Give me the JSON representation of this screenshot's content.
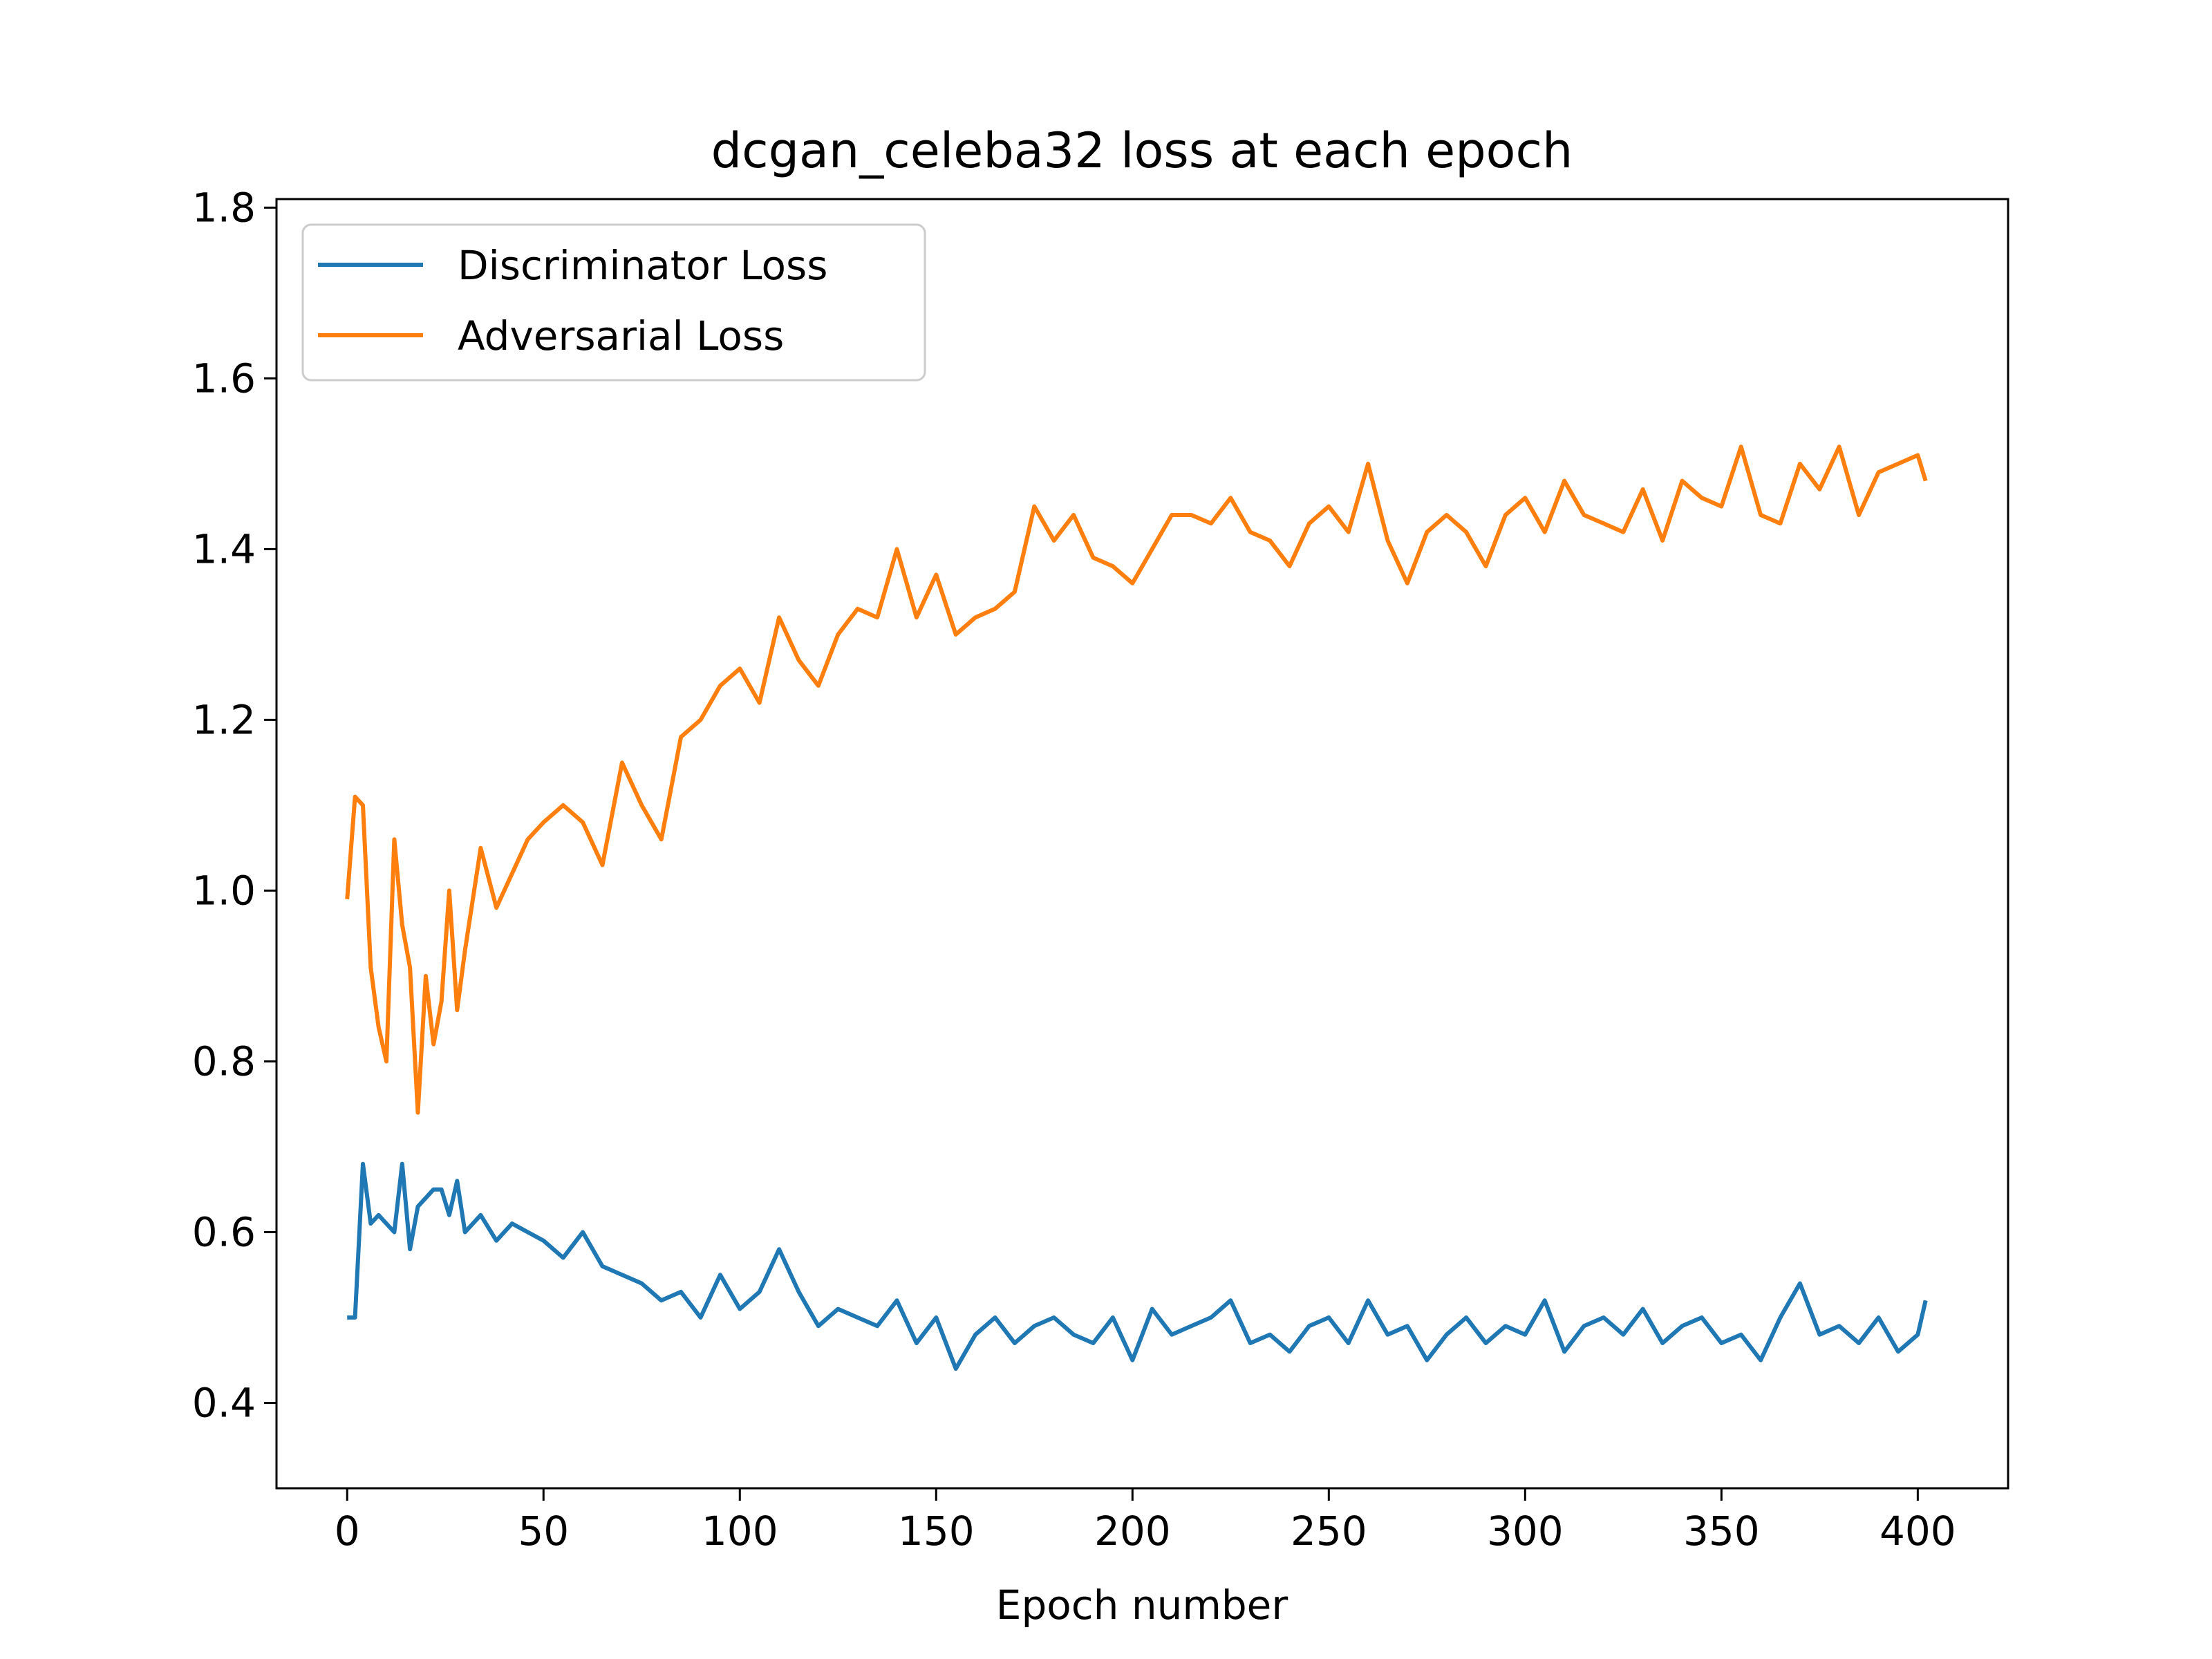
{
  "chart_data": {
    "type": "line",
    "title": "dcgan_celeba32 loss at each epoch",
    "xlabel": "Epoch number",
    "ylabel": "",
    "xlim": [
      -18,
      423
    ],
    "ylim": [
      0.3,
      1.81
    ],
    "xticks": [
      0,
      50,
      100,
      150,
      200,
      250,
      300,
      350,
      400
    ],
    "yticks": [
      0.4,
      0.6,
      0.8,
      1.0,
      1.2,
      1.4,
      1.6,
      1.8
    ],
    "grid": false,
    "legend_position": "top-left",
    "colors": {
      "discriminator": "#1f77b4",
      "adversarial": "#ff7f0e"
    },
    "series": [
      {
        "name": "Discriminator Loss",
        "color": "#1f77b4",
        "x": [
          0,
          2,
          4,
          6,
          8,
          10,
          12,
          14,
          16,
          18,
          20,
          22,
          24,
          26,
          28,
          30,
          34,
          38,
          42,
          46,
          50,
          55,
          60,
          65,
          70,
          75,
          80,
          85,
          90,
          95,
          100,
          105,
          110,
          115,
          120,
          125,
          130,
          135,
          140,
          145,
          150,
          155,
          160,
          165,
          170,
          175,
          180,
          185,
          190,
          195,
          200,
          205,
          210,
          215,
          220,
          225,
          230,
          235,
          240,
          245,
          250,
          255,
          260,
          265,
          270,
          275,
          280,
          285,
          290,
          295,
          300,
          305,
          310,
          315,
          320,
          325,
          330,
          335,
          340,
          345,
          350,
          355,
          360,
          365,
          370,
          375,
          380,
          385,
          390,
          395,
          400,
          402
        ],
        "y": [
          0.5,
          0.5,
          0.68,
          0.61,
          0.62,
          0.61,
          0.6,
          0.68,
          0.58,
          0.63,
          0.64,
          0.65,
          0.65,
          0.62,
          0.66,
          0.6,
          0.62,
          0.59,
          0.61,
          0.6,
          0.59,
          0.57,
          0.6,
          0.56,
          0.55,
          0.54,
          0.52,
          0.53,
          0.5,
          0.55,
          0.51,
          0.53,
          0.58,
          0.53,
          0.49,
          0.51,
          0.5,
          0.49,
          0.52,
          0.47,
          0.5,
          0.44,
          0.48,
          0.5,
          0.47,
          0.49,
          0.5,
          0.48,
          0.47,
          0.5,
          0.45,
          0.51,
          0.48,
          0.49,
          0.5,
          0.52,
          0.47,
          0.48,
          0.46,
          0.49,
          0.5,
          0.47,
          0.52,
          0.48,
          0.49,
          0.45,
          0.48,
          0.5,
          0.47,
          0.49,
          0.48,
          0.52,
          0.46,
          0.49,
          0.5,
          0.48,
          0.51,
          0.47,
          0.49,
          0.5,
          0.47,
          0.48,
          0.45,
          0.5,
          0.54,
          0.48,
          0.49,
          0.47,
          0.5,
          0.46,
          0.48,
          0.52
        ]
      },
      {
        "name": "Adversarial Loss",
        "color": "#ff7f0e",
        "x": [
          0,
          2,
          4,
          6,
          8,
          10,
          12,
          14,
          16,
          18,
          20,
          22,
          24,
          26,
          28,
          30,
          34,
          38,
          42,
          46,
          50,
          55,
          60,
          65,
          70,
          75,
          80,
          85,
          90,
          95,
          100,
          105,
          110,
          115,
          120,
          125,
          130,
          135,
          140,
          145,
          150,
          155,
          160,
          165,
          170,
          175,
          180,
          185,
          190,
          195,
          200,
          205,
          210,
          215,
          220,
          225,
          230,
          235,
          240,
          245,
          250,
          255,
          260,
          265,
          270,
          275,
          280,
          285,
          290,
          295,
          300,
          305,
          310,
          315,
          320,
          325,
          330,
          335,
          340,
          345,
          350,
          355,
          360,
          365,
          370,
          375,
          380,
          385,
          390,
          395,
          400,
          402
        ],
        "y": [
          0.99,
          1.11,
          1.1,
          0.91,
          0.84,
          0.8,
          1.06,
          0.96,
          0.91,
          0.74,
          0.9,
          0.82,
          0.87,
          1.0,
          0.86,
          0.93,
          1.05,
          0.98,
          1.02,
          1.06,
          1.08,
          1.1,
          1.08,
          1.03,
          1.15,
          1.1,
          1.06,
          1.18,
          1.2,
          1.24,
          1.26,
          1.22,
          1.32,
          1.27,
          1.24,
          1.3,
          1.33,
          1.32,
          1.4,
          1.32,
          1.37,
          1.3,
          1.32,
          1.33,
          1.35,
          1.45,
          1.41,
          1.44,
          1.39,
          1.38,
          1.36,
          1.4,
          1.44,
          1.44,
          1.43,
          1.46,
          1.42,
          1.41,
          1.38,
          1.43,
          1.45,
          1.42,
          1.5,
          1.41,
          1.36,
          1.42,
          1.44,
          1.42,
          1.38,
          1.44,
          1.46,
          1.42,
          1.48,
          1.44,
          1.43,
          1.42,
          1.47,
          1.41,
          1.48,
          1.46,
          1.45,
          1.52,
          1.44,
          1.43,
          1.5,
          1.47,
          1.52,
          1.44,
          1.49,
          1.5,
          1.51,
          1.48
        ]
      }
    ]
  }
}
